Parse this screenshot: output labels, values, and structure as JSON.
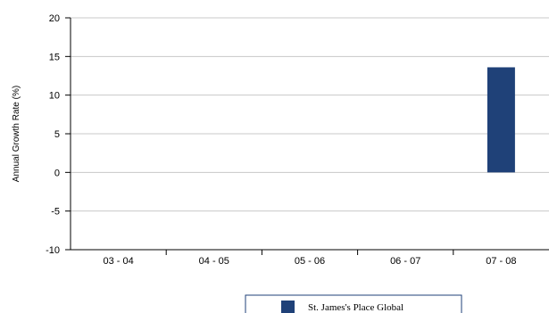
{
  "chart_data": {
    "type": "bar",
    "categories": [
      "03 - 04",
      "04 - 05",
      "05 - 06",
      "06 - 07",
      "07 - 08"
    ],
    "series": [
      {
        "name": "St. James's Place Global",
        "values": [
          null,
          null,
          null,
          null,
          13.6
        ],
        "color": "#1f4178"
      }
    ],
    "ylabel": "Annual Growth Rate (%)",
    "ylim": [
      -10,
      20
    ],
    "yticks": [
      20,
      15,
      10,
      5,
      0,
      -5,
      -10
    ],
    "grid": true,
    "legend_position": "bottom-center"
  }
}
